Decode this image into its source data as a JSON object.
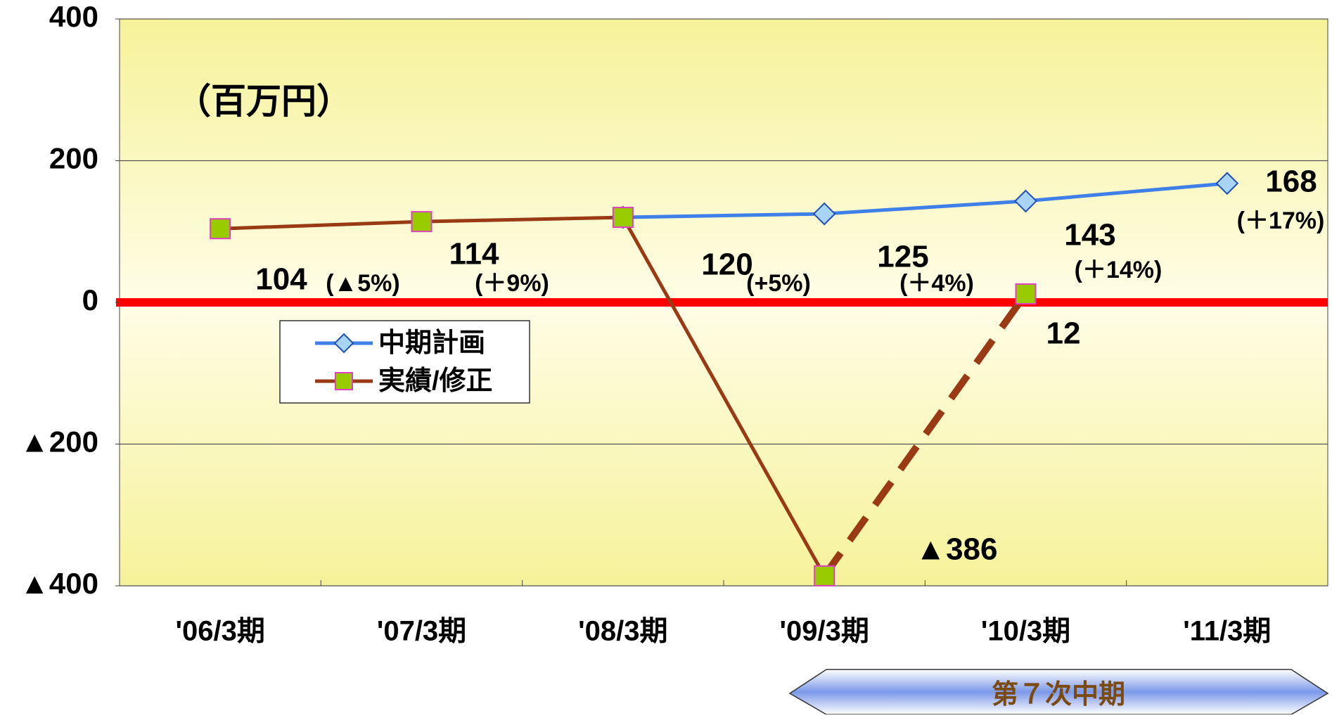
{
  "chart_data": {
    "type": "line",
    "unit_label": "（百万円）",
    "categories": [
      "'06/3期",
      "'07/3期",
      "'08/3期",
      "'09/3期",
      "'10/3期",
      "'11/3期"
    ],
    "series": [
      {
        "name": "中期計画",
        "color": "#3f7fe8",
        "marker": "diamond",
        "marker_color": "#a8d4f8",
        "values": [
          null,
          null,
          120,
          125,
          143,
          168
        ],
        "value_labels": [
          null,
          null,
          null,
          "125",
          "143",
          "168"
        ]
      },
      {
        "name": "実績/修正",
        "color": "#9a3a14",
        "marker": "square",
        "marker_color": "#99cc00",
        "values": [
          104,
          114,
          120,
          -386,
          12,
          null
        ],
        "value_labels": [
          "104",
          "114",
          "120",
          "▲386",
          "12",
          null
        ],
        "dashed_segments": [
          3
        ]
      }
    ],
    "annotations": [
      "(▲5%)",
      "(＋9%)",
      "(+5%)",
      "(＋4%)",
      "(＋14%)",
      "(＋17%)"
    ],
    "ylim": [
      -400,
      400
    ],
    "yticks": [
      {
        "value": -400,
        "label": "▲400"
      },
      {
        "value": -200,
        "label": "▲200"
      },
      0,
      200,
      400
    ],
    "zero_line_color": "#ff0000",
    "grid": true,
    "banner": "第７次中期"
  }
}
